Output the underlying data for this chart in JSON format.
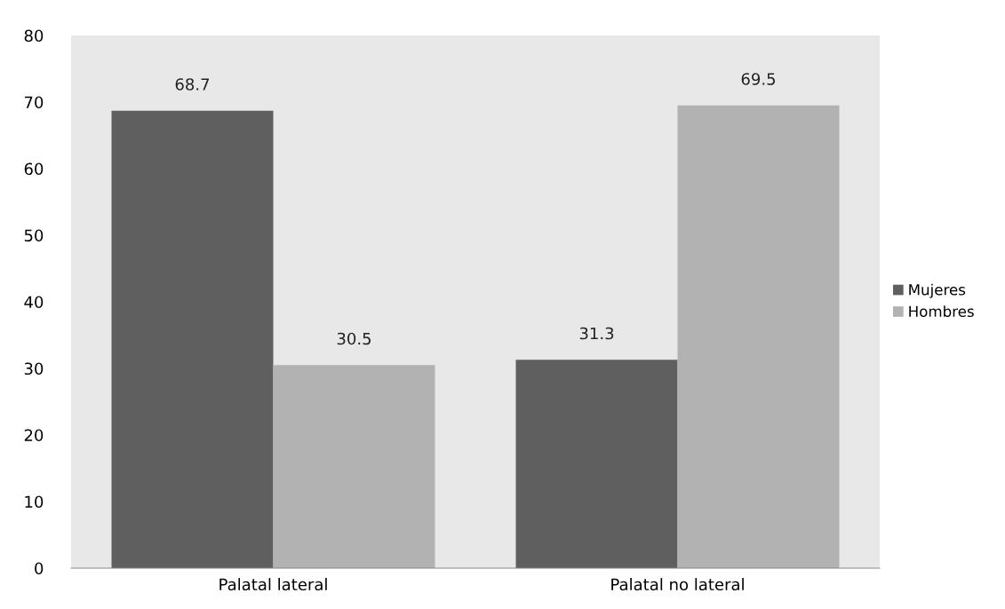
{
  "chart_data": {
    "type": "bar",
    "categories": [
      "Palatal lateral",
      "Palatal no lateral"
    ],
    "series": [
      {
        "name": "Mujeres",
        "color": "#5f5f5f",
        "values": [
          68.7,
          31.3
        ]
      },
      {
        "name": "Hombres",
        "color": "#b2b2b2",
        "values": [
          30.5,
          69.5
        ]
      }
    ],
    "ylim": [
      0,
      80
    ],
    "yticks": [
      0,
      10,
      20,
      30,
      40,
      50,
      60,
      70,
      80
    ],
    "data_labels": true,
    "legend": "right",
    "grid": false
  }
}
